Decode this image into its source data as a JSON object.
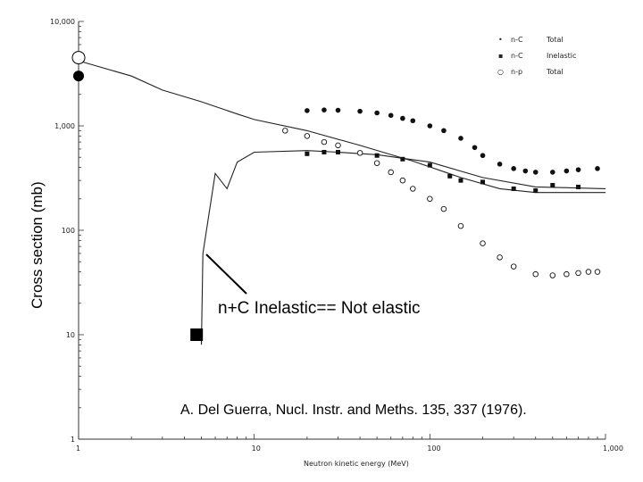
{
  "chart_data": {
    "type": "scatter",
    "xlabel": "Neutron kinetic energy (MeV)",
    "ylabel": "Cross section (mb)",
    "xscale": "log",
    "yscale": "log",
    "xlim": [
      1,
      1000
    ],
    "ylim": [
      1,
      10000
    ],
    "x_ticks": [
      "1",
      "10",
      "100",
      "1,000"
    ],
    "y_ticks": [
      "1",
      "10",
      "100",
      "1,000",
      "10,000"
    ],
    "legend_position": "top-right",
    "series": [
      {
        "name": "n-C Total",
        "marker": "filled-circle",
        "points": [
          [
            20,
            1400
          ],
          [
            25,
            1420
          ],
          [
            30,
            1410
          ],
          [
            40,
            1380
          ],
          [
            50,
            1330
          ],
          [
            60,
            1260
          ],
          [
            70,
            1180
          ],
          [
            80,
            1120
          ],
          [
            100,
            1000
          ],
          [
            120,
            900
          ],
          [
            150,
            760
          ],
          [
            180,
            620
          ],
          [
            200,
            520
          ],
          [
            250,
            430
          ],
          [
            300,
            390
          ],
          [
            350,
            370
          ],
          [
            400,
            360
          ],
          [
            500,
            360
          ],
          [
            600,
            370
          ],
          [
            700,
            380
          ],
          [
            900,
            390
          ]
        ]
      },
      {
        "name": "n-C Inelastic",
        "marker": "filled-square",
        "points": [
          [
            20,
            540
          ],
          [
            25,
            560
          ],
          [
            30,
            560
          ],
          [
            40,
            550
          ],
          [
            50,
            520
          ],
          [
            70,
            480
          ],
          [
            100,
            420
          ],
          [
            130,
            330
          ],
          [
            150,
            300
          ],
          [
            200,
            290
          ],
          [
            300,
            250
          ],
          [
            400,
            240
          ],
          [
            500,
            270
          ],
          [
            700,
            260
          ]
        ]
      },
      {
        "name": "n-p Total",
        "marker": "open-circle",
        "points": [
          [
            15,
            900
          ],
          [
            20,
            800
          ],
          [
            25,
            700
          ],
          [
            30,
            650
          ],
          [
            40,
            550
          ],
          [
            50,
            440
          ],
          [
            60,
            360
          ],
          [
            70,
            300
          ],
          [
            80,
            250
          ],
          [
            100,
            200
          ],
          [
            120,
            160
          ],
          [
            150,
            110
          ],
          [
            200,
            75
          ],
          [
            250,
            55
          ],
          [
            300,
            45
          ],
          [
            400,
            38
          ],
          [
            500,
            37
          ],
          [
            600,
            38
          ],
          [
            700,
            39
          ],
          [
            800,
            40
          ],
          [
            900,
            40
          ]
        ]
      }
    ],
    "curves": [
      {
        "name": "n-C Total",
        "points": [
          [
            1,
            4200
          ],
          [
            2,
            3000
          ],
          [
            3,
            2200
          ],
          [
            5,
            1700
          ],
          [
            8,
            1300
          ],
          [
            10,
            1150
          ],
          [
            20,
            900
          ],
          [
            40,
            650
          ],
          [
            80,
            460
          ],
          [
            150,
            320
          ],
          [
            250,
            250
          ],
          [
            400,
            230
          ],
          [
            700,
            230
          ],
          [
            1000,
            230
          ]
        ]
      },
      {
        "name": "n-C Inelastic",
        "points": [
          [
            5,
            8
          ],
          [
            5.1,
            60
          ],
          [
            6,
            350
          ],
          [
            7,
            250
          ],
          [
            8,
            450
          ],
          [
            10,
            560
          ],
          [
            20,
            580
          ],
          [
            30,
            560
          ],
          [
            50,
            530
          ],
          [
            100,
            450
          ],
          [
            200,
            320
          ],
          [
            400,
            260
          ],
          [
            1000,
            250
          ]
        ]
      }
    ],
    "marked_points": [
      {
        "x": 1,
        "y": 4500,
        "style": "open-circle"
      },
      {
        "x": 1,
        "y": 3000,
        "style": "filled-circle"
      },
      {
        "x": 4.7,
        "y": 10,
        "style": "filled-square"
      }
    ],
    "annotation": "n+C Inelastic== Not elastic",
    "citation": "A. Del Guerra, Nucl. Instr. and Meths. 135, 337 (1976).",
    "legend": [
      {
        "symbol": "•",
        "prefix": "n-C",
        "text": "Total"
      },
      {
        "symbol": "▪",
        "prefix": "n-C",
        "text": "Inelastic"
      },
      {
        "symbol": "○",
        "prefix": "n-p",
        "text": "Total"
      }
    ]
  }
}
